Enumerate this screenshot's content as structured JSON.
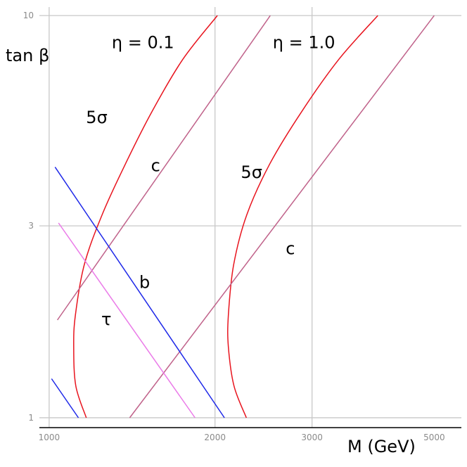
{
  "chart_data": {
    "type": "line",
    "title": "",
    "xlabel": "M (GeV)",
    "ylabel": "tan β",
    "xscale": "log",
    "yscale": "log",
    "xlim": [
      960,
      5600
    ],
    "ylim": [
      0.945,
      10.5
    ],
    "xticks": [
      {
        "value": 1000,
        "label": "1000"
      },
      {
        "value": 2000,
        "label": "2000"
      },
      {
        "value": 3000,
        "label": "3000"
      },
      {
        "value": 5000,
        "label": "5000"
      }
    ],
    "yticks": [
      {
        "value": 1,
        "label": "1"
      },
      {
        "value": 3,
        "label": "3"
      },
      {
        "value": 10,
        "label": "10"
      }
    ],
    "grid": true,
    "series": [
      {
        "id": "eta01-5sigma",
        "color": "#e8141e",
        "x": [
          1168,
          1118,
          1108,
          1116,
          1158,
          1248,
          1378,
          1540,
          1750,
          2020
        ],
        "y": [
          1.0,
          1.2,
          1.5,
          1.8,
          2.4,
          3.2,
          4.3,
          5.8,
          7.8,
          10.0
        ]
      },
      {
        "id": "eta10-5sigma",
        "color": "#e8141e",
        "x": [
          2280,
          2165,
          2115,
          2115,
          2162,
          2285,
          2520,
          2880,
          3360,
          3950
        ],
        "y": [
          1.0,
          1.2,
          1.5,
          1.8,
          2.4,
          3.2,
          4.3,
          5.8,
          7.8,
          10.0
        ]
      },
      {
        "id": "eta01-c",
        "color": "#c0628a",
        "x": [
          1035,
          2520
        ],
        "y": [
          1.75,
          10.0
        ]
      },
      {
        "id": "eta10-c",
        "color": "#c0628a",
        "x": [
          1400,
          5000
        ],
        "y": [
          1.0,
          10.0
        ]
      },
      {
        "id": "b-upper",
        "color": "#1e28e8",
        "x": [
          1025,
          2080
        ],
        "y": [
          4.2,
          1.0
        ]
      },
      {
        "id": "b-lower",
        "color": "#1e28e8",
        "x": [
          1010,
          1130
        ],
        "y": [
          1.25,
          1.0
        ]
      },
      {
        "id": "tau",
        "color": "#ea7ae8",
        "x": [
          1040,
          1840
        ],
        "y": [
          3.05,
          1.0
        ]
      }
    ],
    "annotations": [
      {
        "text": "η = 0.1",
        "x": 1480,
        "y": 8.3
      },
      {
        "text": "η = 1.0",
        "x": 2900,
        "y": 8.3
      },
      {
        "text": "5σ",
        "x": 1220,
        "y": 5.4
      },
      {
        "text": "5σ",
        "x": 2330,
        "y": 3.95
      },
      {
        "text": "c",
        "x": 1560,
        "y": 4.1
      },
      {
        "text": "c",
        "x": 2740,
        "y": 2.55
      },
      {
        "text": "b",
        "x": 1490,
        "y": 2.1
      },
      {
        "text": "τ",
        "x": 1270,
        "y": 1.7
      }
    ]
  }
}
